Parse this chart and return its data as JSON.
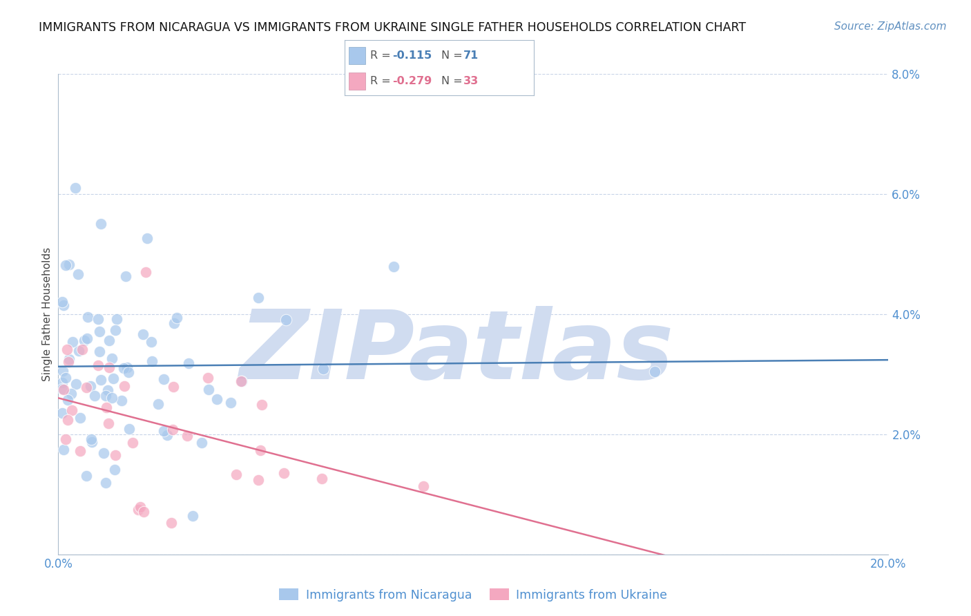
{
  "title": "IMMIGRANTS FROM NICARAGUA VS IMMIGRANTS FROM UKRAINE SINGLE FATHER HOUSEHOLDS CORRELATION CHART",
  "source": "Source: ZipAtlas.com",
  "ylabel": "Single Father Households",
  "xlim": [
    0.0,
    0.2
  ],
  "ylim": [
    0.0,
    0.08
  ],
  "xticks": [
    0.0,
    0.05,
    0.1,
    0.15,
    0.2
  ],
  "yticks": [
    0.0,
    0.02,
    0.04,
    0.06,
    0.08
  ],
  "nicaragua_color": "#A8C8EC",
  "ukraine_color": "#F4A8C0",
  "nicaragua_line_color": "#4A7FB5",
  "ukraine_line_color": "#E07090",
  "nicaragua_R": -0.115,
  "nicaragua_N": 71,
  "ukraine_R": -0.279,
  "ukraine_N": 33,
  "watermark_text": "ZIPatlas",
  "watermark_color": "#D0DCF0",
  "background_color": "#FFFFFF",
  "title_fontsize": 12.5,
  "tick_color": "#5090D0",
  "tick_fontsize": 12,
  "source_fontsize": 11,
  "axis_label_fontsize": 11,
  "grid_color": "#C8D4E8",
  "spine_color": "#AABBCC"
}
